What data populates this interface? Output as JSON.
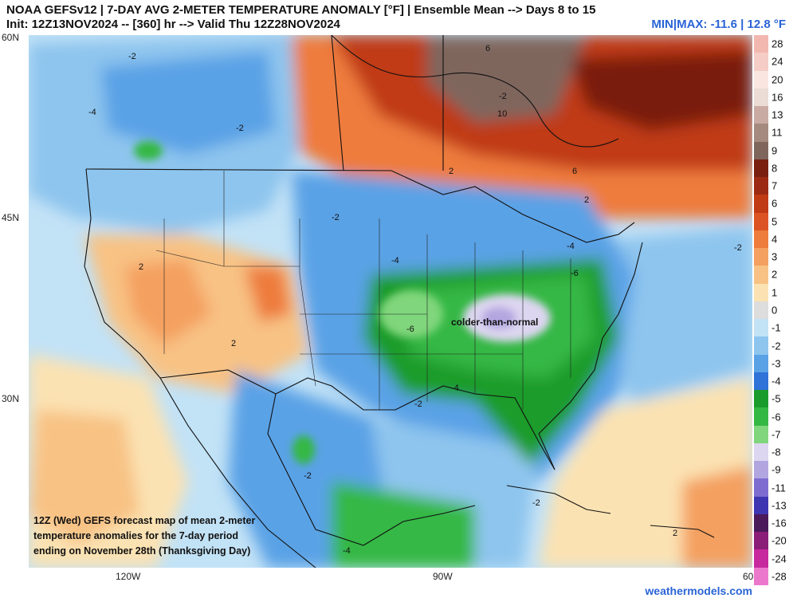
{
  "header": {
    "line1": "NOAA GEFSv12 | 7-DAY AVG 2-METER TEMPERATURE ANOMALY [°F] | Ensemble Mean --> Days 8 to 15",
    "line2": "Init: 12Z13NOV2024 -- [360] hr --> Valid Thu 12Z28NOV2024",
    "minmax": "MIN|MAX: -11.6 | 12.8 °F"
  },
  "axes": {
    "lat_labels": [
      "60N",
      "45N",
      "30N"
    ],
    "lon_labels": [
      "120W",
      "90W",
      "60"
    ]
  },
  "colorbar": {
    "levels": [
      {
        "label": "28",
        "color": "#f2b8b0"
      },
      {
        "label": "24",
        "color": "#f6cdc6"
      },
      {
        "label": "20",
        "color": "#fae6e1"
      },
      {
        "label": "16",
        "color": "#ecdcd6"
      },
      {
        "label": "13",
        "color": "#c9aba3"
      },
      {
        "label": "11",
        "color": "#a58a80"
      },
      {
        "label": "9",
        "color": "#7f665d"
      },
      {
        "label": "8",
        "color": "#7a1f10"
      },
      {
        "label": "7",
        "color": "#9c2a12"
      },
      {
        "label": "6",
        "color": "#c03a14"
      },
      {
        "label": "5",
        "color": "#dc5424"
      },
      {
        "label": "4",
        "color": "#ee7c3c"
      },
      {
        "label": "3",
        "color": "#f4a060"
      },
      {
        "label": "2",
        "color": "#f8c284"
      },
      {
        "label": "1",
        "color": "#fbe2b2"
      },
      {
        "label": "0",
        "color": "#dddddd"
      },
      {
        "label": "-1",
        "color": "#c2e2f6"
      },
      {
        "label": "-2",
        "color": "#8ec5ee"
      },
      {
        "label": "-3",
        "color": "#5aa2e6"
      },
      {
        "label": "-4",
        "color": "#2f72d8"
      },
      {
        "label": "-5",
        "color": "#1a9c2c"
      },
      {
        "label": "-6",
        "color": "#34b844"
      },
      {
        "label": "-7",
        "color": "#80d67c"
      },
      {
        "label": "-8",
        "color": "#ddd6f0"
      },
      {
        "label": "-9",
        "color": "#b2a6e0"
      },
      {
        "label": "-11",
        "color": "#7e6cd0"
      },
      {
        "label": "-13",
        "color": "#3e36b0"
      },
      {
        "label": "-16",
        "color": "#4a1a5a"
      },
      {
        "label": "-20",
        "color": "#8a1e78"
      },
      {
        "label": "-24",
        "color": "#c8289e"
      },
      {
        "label": "-28",
        "color": "#ec78cc"
      }
    ]
  },
  "contour_labels": [
    "-2",
    "-4",
    "-2",
    "6",
    "10",
    "6",
    "2",
    "2",
    "-2",
    "-4",
    "-4",
    "-6",
    "-6",
    "2",
    "2",
    "-2",
    "-2",
    "-4",
    "-2",
    "-2",
    "2",
    "-4",
    "-2"
  ],
  "annotation": "colder-than-normal",
  "caption": {
    "line1": "12Z (Wed) GEFS forecast map of mean 2-meter",
    "line2": "temperature anomalies for the 7-day period",
    "line3": "ending on November 28th (Thanksgiving Day)"
  },
  "brand": "weathermodels.com"
}
